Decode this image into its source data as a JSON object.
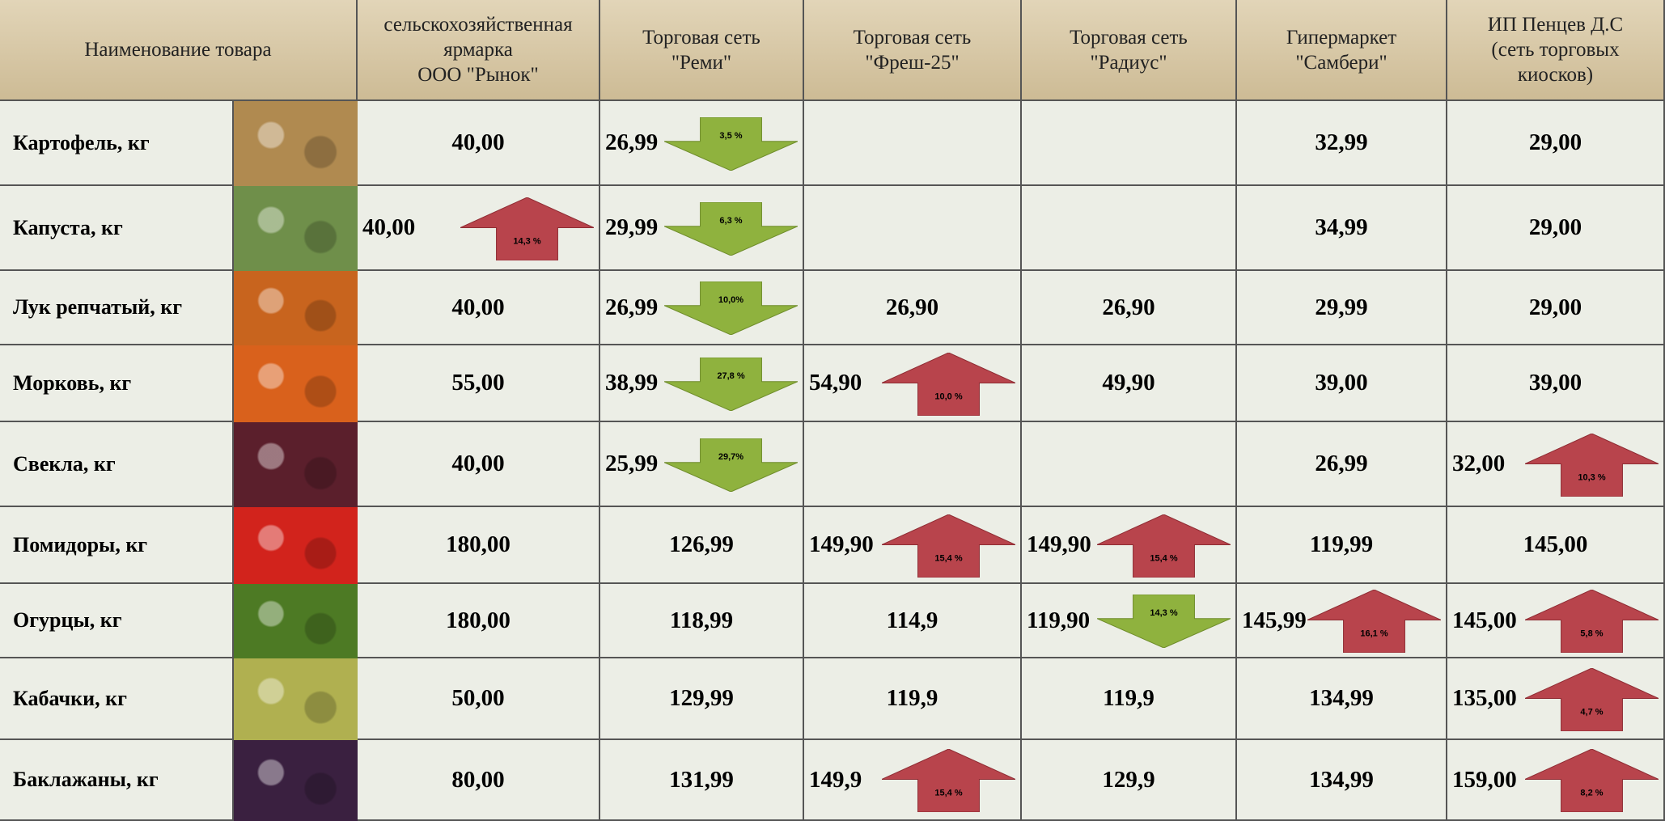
{
  "table": {
    "header": [
      "Наименование товара",
      "сельскохозяйственная\nярмарка\nООО \"Рынок\"",
      "Торговая сеть\n\"Реми\"",
      "Торговая сеть\n\"Фреш-25\"",
      "Торговая сеть\n\"Радиус\"",
      "Гипермаркет\n\"Самбери\"",
      "ИП Пенцев Д.С\n(сеть торговых\nкиосков)"
    ],
    "rows": [
      {
        "name": "Картофель, кг",
        "cells": [
          {
            "price": "40,00"
          },
          {
            "price": "26,99",
            "change": {
              "direction": "down",
              "label": "3,5 %"
            }
          },
          null,
          null,
          {
            "price": "32,99"
          },
          {
            "price": "29,00"
          }
        ]
      },
      {
        "name": "Капуста, кг",
        "cells": [
          {
            "price": "40,00",
            "change": {
              "direction": "up",
              "label": "14,3 %"
            }
          },
          {
            "price": "29,99",
            "change": {
              "direction": "down",
              "label": "6,3 %"
            }
          },
          null,
          null,
          {
            "price": "34,99"
          },
          {
            "price": "29,00"
          }
        ]
      },
      {
        "name": "Лук репчатый, кг",
        "cells": [
          {
            "price": "40,00"
          },
          {
            "price": "26,99",
            "change": {
              "direction": "down",
              "label": "10,0%"
            }
          },
          {
            "price": "26,90"
          },
          {
            "price": "26,90"
          },
          {
            "price": "29,99"
          },
          {
            "price": "29,00"
          }
        ]
      },
      {
        "name": "Морковь, кг",
        "cells": [
          {
            "price": "55,00"
          },
          {
            "price": "38,99",
            "change": {
              "direction": "down",
              "label": "27,8 %"
            }
          },
          {
            "price": "54,90",
            "change": {
              "direction": "up",
              "label": "10,0 %"
            }
          },
          {
            "price": "49,90"
          },
          {
            "price": "39,00"
          },
          {
            "price": "39,00"
          }
        ]
      },
      {
        "name": "Свекла, кг",
        "cells": [
          {
            "price": "40,00"
          },
          {
            "price": "25,99",
            "change": {
              "direction": "down",
              "label": "29,7%"
            }
          },
          null,
          null,
          {
            "price": "26,99"
          },
          {
            "price": "32,00",
            "change": {
              "direction": "up",
              "label": "10,3 %"
            }
          }
        ]
      },
      {
        "name": "Помидоры, кг",
        "cells": [
          {
            "price": "180,00"
          },
          {
            "price": "126,99"
          },
          {
            "price": "149,90",
            "change": {
              "direction": "up",
              "label": "15,4 %"
            }
          },
          {
            "price": "149,90",
            "change": {
              "direction": "up",
              "label": "15,4 %"
            }
          },
          {
            "price": "119,99"
          },
          {
            "price": "145,00"
          }
        ]
      },
      {
        "name": "Огурцы, кг",
        "cells": [
          {
            "price": "180,00"
          },
          {
            "price": "118,99"
          },
          {
            "price": "114,9"
          },
          {
            "price": "119,90",
            "change": {
              "direction": "down",
              "label": "14,3 %"
            }
          },
          {
            "price": "145,99",
            "change": {
              "direction": "up",
              "label": "16,1 %"
            }
          },
          {
            "price": "145,00",
            "change": {
              "direction": "up",
              "label": "5,8 %"
            }
          }
        ]
      },
      {
        "name": "Кабачки, кг",
        "cells": [
          {
            "price": "50,00"
          },
          {
            "price": "129,99"
          },
          {
            "price": "119,9"
          },
          {
            "price": "119,9"
          },
          {
            "price": "134,99"
          },
          {
            "price": "135,00",
            "change": {
              "direction": "up",
              "label": "4,7 %"
            }
          }
        ]
      },
      {
        "name": "Баклажаны, кг",
        "cells": [
          {
            "price": "80,00"
          },
          {
            "price": "131,99"
          },
          {
            "price": "149,9",
            "change": {
              "direction": "up",
              "label": "15,4 %"
            }
          },
          {
            "price": "129,9"
          },
          {
            "price": "134,99"
          },
          {
            "price": "159,00",
            "change": {
              "direction": "up",
              "label": "8,2 %"
            }
          }
        ]
      }
    ]
  }
}
